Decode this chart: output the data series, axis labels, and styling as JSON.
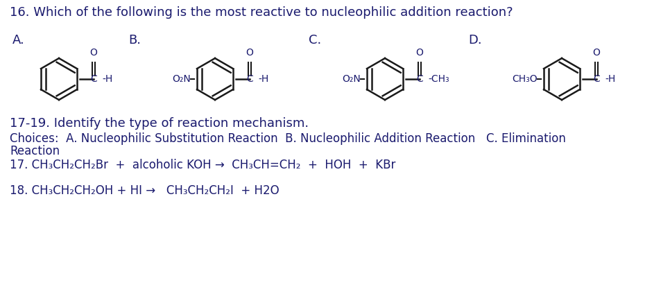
{
  "bg_color": "#ffffff",
  "text_color": "#1a1a6e",
  "title": "16. Which of the following is the most reactive to nucleophilic addition reaction?",
  "q1719_title": "17-19. Identify the type of reaction mechanism.",
  "choices_line1": "Choices:  A. Nucleophilic Substitution Reaction  B. Nucleophilic Addition Reaction   C. Elimination",
  "choices_line2": "Reaction",
  "q17": "17. CH₃CH₂CH₂Br  +  alcoholic KOH →  CH₃CH=CH₂  +  HOH  +  KBr",
  "q18": "18. CH₃CH₂CH₂OH + HI →   CH₃CH₂CH₂I  + H2O",
  "label_A": "A.",
  "label_B": "B.",
  "label_C": "C.",
  "label_D": "D.",
  "font_size_title": 13,
  "font_size_label": 13,
  "font_size_body": 12,
  "font_size_chem": 11
}
